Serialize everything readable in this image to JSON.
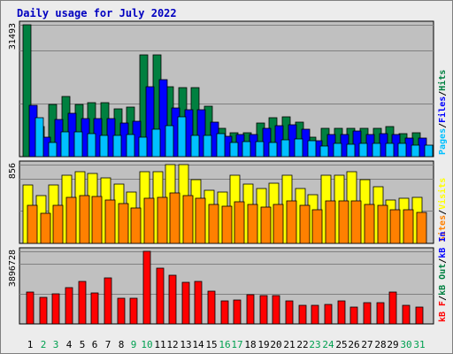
{
  "title": "Daily usage for July 2022",
  "colors": {
    "background": "#ececec",
    "plot_bg": "#c0c0c0",
    "gridline": "#808080",
    "title": "#0000c0",
    "hits": "#008040",
    "files": "#0000ff",
    "pages": "#00c0ff",
    "visits": "#ffff00",
    "sites": "#ff8000",
    "kbin": "#0000ff",
    "kbout": "#008040",
    "kbf": "#ff0000",
    "weekend_day": "#00a050",
    "weekday": "#000000"
  },
  "chart_data": [
    {
      "type": "bar",
      "name": "hits_files_pages",
      "max_label": "31493",
      "ylim": [
        0,
        31493
      ],
      "legend": [
        {
          "text": "Pages",
          "color": "#00c0ff"
        },
        {
          "text": "/",
          "color": "#000000"
        },
        {
          "text": "Files",
          "color": "#0000ff"
        },
        {
          "text": "/",
          "color": "#000000"
        },
        {
          "text": "Hits",
          "color": "#008040"
        }
      ],
      "series": [
        {
          "name": "Hits",
          "values": [
            31493,
            7200,
            12400,
            14400,
            12400,
            12800,
            12800,
            11500,
            11800,
            24400,
            24400,
            16800,
            16400,
            16400,
            12000,
            6800,
            5800,
            5800,
            8000,
            9200,
            9600,
            8200,
            4700,
            6800,
            6800,
            6800,
            6800,
            6800,
            7200,
            5600,
            5800
          ]
        },
        {
          "name": "Files",
          "values": [
            12200,
            4700,
            8800,
            10300,
            9000,
            9000,
            9000,
            8000,
            8400,
            16800,
            18400,
            11600,
            11200,
            11200,
            8200,
            4900,
            5300,
            5300,
            6800,
            7500,
            7600,
            6500,
            3700,
            5200,
            5200,
            6100,
            5200,
            5400,
            5200,
            4400,
            4500
          ]
        },
        {
          "name": "Pages",
          "values": [
            9400,
            3300,
            5900,
            5900,
            5600,
            5000,
            5000,
            5300,
            4600,
            6600,
            7400,
            9500,
            5000,
            5000,
            5400,
            3400,
            3600,
            3600,
            3400,
            4000,
            4300,
            3800,
            2600,
            3100,
            3000,
            3200,
            3100,
            3200,
            3200,
            2800,
            2800
          ]
        }
      ]
    },
    {
      "type": "bar",
      "name": "visits_sites",
      "max_label": "856",
      "ylim": [
        0,
        856
      ],
      "legend": [
        {
          "text": "Sites",
          "color": "#ff8000"
        },
        {
          "text": "/",
          "color": "#000000"
        },
        {
          "text": "Visits",
          "color": "#ffff00"
        }
      ],
      "series": [
        {
          "name": "Visits",
          "values": [
            630,
            520,
            630,
            740,
            780,
            760,
            710,
            640,
            560,
            780,
            780,
            856,
            856,
            690,
            580,
            560,
            740,
            640,
            600,
            650,
            740,
            600,
            530,
            740,
            740,
            780,
            690,
            620,
            470,
            490,
            500
          ]
        },
        {
          "name": "Sites",
          "values": [
            410,
            330,
            410,
            500,
            520,
            510,
            470,
            430,
            380,
            490,
            500,
            550,
            520,
            490,
            420,
            400,
            450,
            420,
            390,
            420,
            460,
            410,
            370,
            460,
            460,
            460,
            420,
            410,
            370,
            370,
            340
          ]
        }
      ]
    },
    {
      "type": "bar",
      "name": "kbf",
      "max_label": "3896728",
      "ylim": [
        0,
        3896728
      ],
      "legend": [
        {
          "text": "kB F",
          "color": "#ff0000"
        },
        {
          "text": "/",
          "color": "#000000"
        },
        {
          "text": "kB Out",
          "color": "#008040"
        },
        {
          "text": "/",
          "color": "#000000"
        },
        {
          "text": "kB In",
          "color": "#0000ff"
        }
      ],
      "series": [
        {
          "name": "kB F",
          "values": [
            1720000,
            1420000,
            1630000,
            1950000,
            2260000,
            1660000,
            2460000,
            1400000,
            1400000,
            3896728,
            3000000,
            2600000,
            2240000,
            2290000,
            1750000,
            1240000,
            1280000,
            1580000,
            1500000,
            1500000,
            1230000,
            1000000,
            1000000,
            1030000,
            1240000,
            880000,
            1150000,
            1140000,
            1700000,
            990000,
            910000
          ]
        }
      ]
    }
  ],
  "days": [
    {
      "label": "1",
      "weekend": false
    },
    {
      "label": "2",
      "weekend": true
    },
    {
      "label": "3",
      "weekend": true
    },
    {
      "label": "4",
      "weekend": false
    },
    {
      "label": "5",
      "weekend": false
    },
    {
      "label": "6",
      "weekend": false
    },
    {
      "label": "7",
      "weekend": false
    },
    {
      "label": "8",
      "weekend": false
    },
    {
      "label": "9",
      "weekend": true
    },
    {
      "label": "10",
      "weekend": true
    },
    {
      "label": "11",
      "weekend": false
    },
    {
      "label": "12",
      "weekend": false
    },
    {
      "label": "13",
      "weekend": false
    },
    {
      "label": "14",
      "weekend": false
    },
    {
      "label": "15",
      "weekend": false
    },
    {
      "label": "16",
      "weekend": true
    },
    {
      "label": "17",
      "weekend": true
    },
    {
      "label": "18",
      "weekend": false
    },
    {
      "label": "19",
      "weekend": false
    },
    {
      "label": "20",
      "weekend": false
    },
    {
      "label": "21",
      "weekend": false
    },
    {
      "label": "22",
      "weekend": false
    },
    {
      "label": "23",
      "weekend": true
    },
    {
      "label": "24",
      "weekend": true
    },
    {
      "label": "25",
      "weekend": false
    },
    {
      "label": "26",
      "weekend": false
    },
    {
      "label": "27",
      "weekend": false
    },
    {
      "label": "28",
      "weekend": false
    },
    {
      "label": "29",
      "weekend": false
    },
    {
      "label": "30",
      "weekend": true
    },
    {
      "label": "31",
      "weekend": true
    }
  ]
}
